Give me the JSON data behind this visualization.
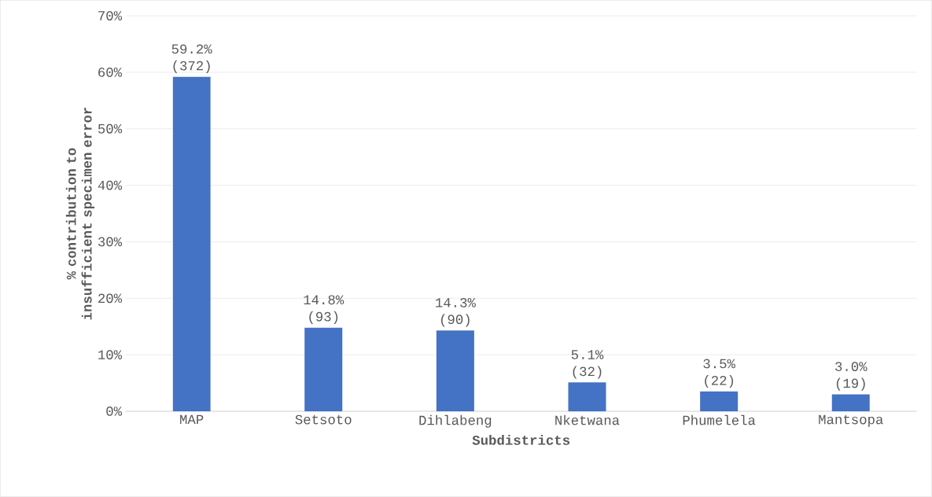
{
  "chart_data": {
    "type": "bar",
    "xlabel": "Subdistricts",
    "ylabel": "% contribution to insufficient specimen error",
    "categories": [
      "MAP",
      "Setsoto",
      "Dihlabeng",
      "Nketwana",
      "Phumelela",
      "Mantsopa"
    ],
    "values": [
      59.2,
      14.8,
      14.3,
      5.1,
      3.5,
      3.0
    ],
    "value_labels": [
      "59.2% (372)",
      "14.8% (93)",
      "14.3% (90)",
      "5.1% (32)",
      "3.5% (22)",
      "3.0% (19)"
    ],
    "color": "#4472c4",
    "ylim": [
      0,
      70
    ],
    "yticks": [
      {
        "value": 0,
        "label": "0%"
      },
      {
        "value": 10,
        "label": "10%"
      },
      {
        "value": 20,
        "label": "20%"
      },
      {
        "value": 30,
        "label": "30%"
      },
      {
        "value": 40,
        "label": "40%"
      },
      {
        "value": 50,
        "label": "50%"
      },
      {
        "value": 60,
        "label": "60%"
      },
      {
        "value": 70,
        "label": "70%"
      }
    ],
    "grid": "y"
  }
}
